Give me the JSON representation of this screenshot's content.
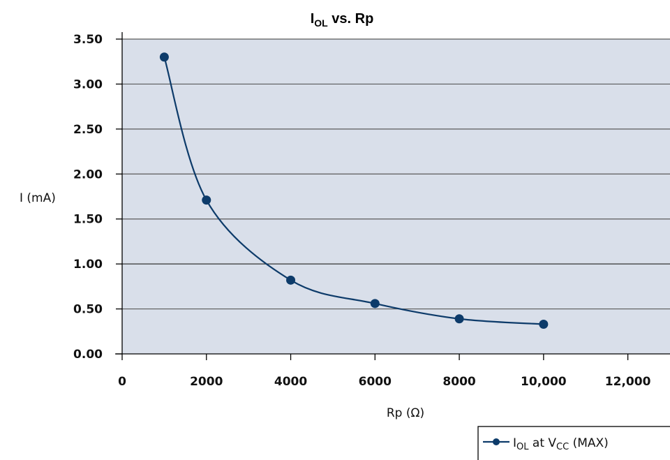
{
  "chart_data": {
    "type": "line",
    "title": {
      "main": "I",
      "sub": "OL",
      "rest": " vs. Rp"
    },
    "xlabel": "Rp (Ω)",
    "ylabel": "I (mA)",
    "xlim": [
      0,
      13000
    ],
    "ylim": [
      0,
      3.5
    ],
    "x_ticks": [
      0,
      2000,
      4000,
      6000,
      8000,
      10000,
      12000
    ],
    "x_tick_labels": [
      "0",
      "2000",
      "4000",
      "6000",
      "8000",
      "10,000",
      "12,000"
    ],
    "y_ticks": [
      0,
      0.5,
      1.0,
      1.5,
      2.0,
      2.5,
      3.0,
      3.5
    ],
    "y_tick_labels": [
      "0.00",
      "0.50",
      "1.00",
      "1.50",
      "2.00",
      "2.50",
      "3.00",
      "3.50"
    ],
    "grid": true,
    "plot_background": "#d9dfea",
    "series_color": "#0d3b6a",
    "legend_placement": "bottom-right",
    "series": [
      {
        "name": {
          "a": "I",
          "a_sub": "OL",
          "b": " at V",
          "b_sub": "CC",
          "c": " (MAX)"
        },
        "x": [
          1000,
          2000,
          4000,
          6000,
          8000,
          10000
        ],
        "y": [
          3.3,
          1.71,
          0.82,
          0.56,
          0.39,
          0.33
        ]
      }
    ]
  }
}
